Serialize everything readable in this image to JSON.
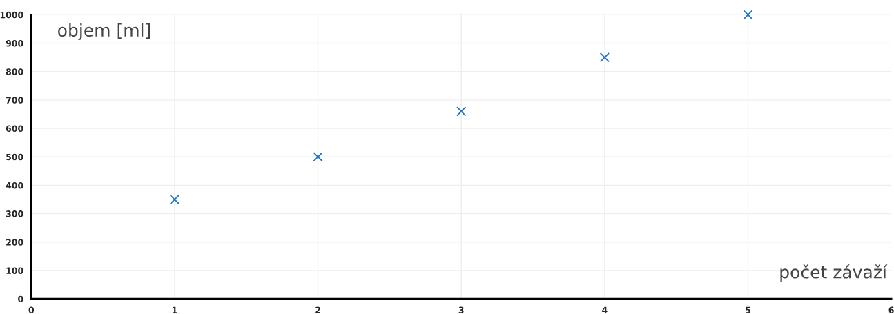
{
  "chart_data": {
    "type": "scatter",
    "xlabel": "počet závaží",
    "ylabel": "objem [ml]",
    "x": [
      1,
      2,
      3,
      4,
      5
    ],
    "series": [
      {
        "color": "#1a73c8",
        "values": [
          350,
          500,
          660,
          850,
          1000
        ]
      }
    ],
    "xlim": [
      0,
      6
    ],
    "xticks": [
      0,
      1,
      2,
      3,
      4,
      5,
      6
    ],
    "ylim": [
      0,
      1000
    ],
    "yticks": [
      0,
      100,
      200,
      300,
      400,
      500,
      600,
      700,
      800,
      900,
      1000
    ],
    "grid": true,
    "marker": "cross",
    "legend": false
  }
}
